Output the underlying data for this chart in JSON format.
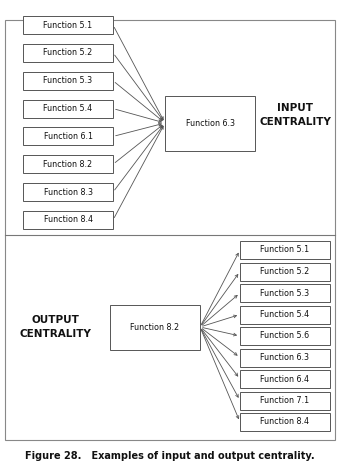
{
  "title": "Figure 28.   Examples of input and output centrality.",
  "input_label": "INPUT\nCENTRALITY",
  "output_label": "OUTPUT\nCENTRALITY",
  "input_sources": [
    "Function 5.1",
    "Function 5.2",
    "Function 5.3",
    "Function 5.4",
    "Function 6.1",
    "Function 8.2",
    "Function 8.3",
    "Function 8.4"
  ],
  "input_target": "Function 6.3",
  "output_source": "Function 8.2",
  "output_targets": [
    "Function 5.1",
    "Function 5.2",
    "Function 5.3",
    "Function 5.4",
    "Function 5.6",
    "Function 6.3",
    "Function 6.4",
    "Function 7.1",
    "Function 8.4"
  ],
  "bg_color": "#ffffff",
  "box_color": "#ffffff",
  "box_edge_color": "#555555",
  "line_color": "#555555",
  "text_color": "#111111",
  "divider_color": "#777777",
  "font_size": 5.8,
  "label_font_size": 7.5,
  "title_font_size": 7.0
}
